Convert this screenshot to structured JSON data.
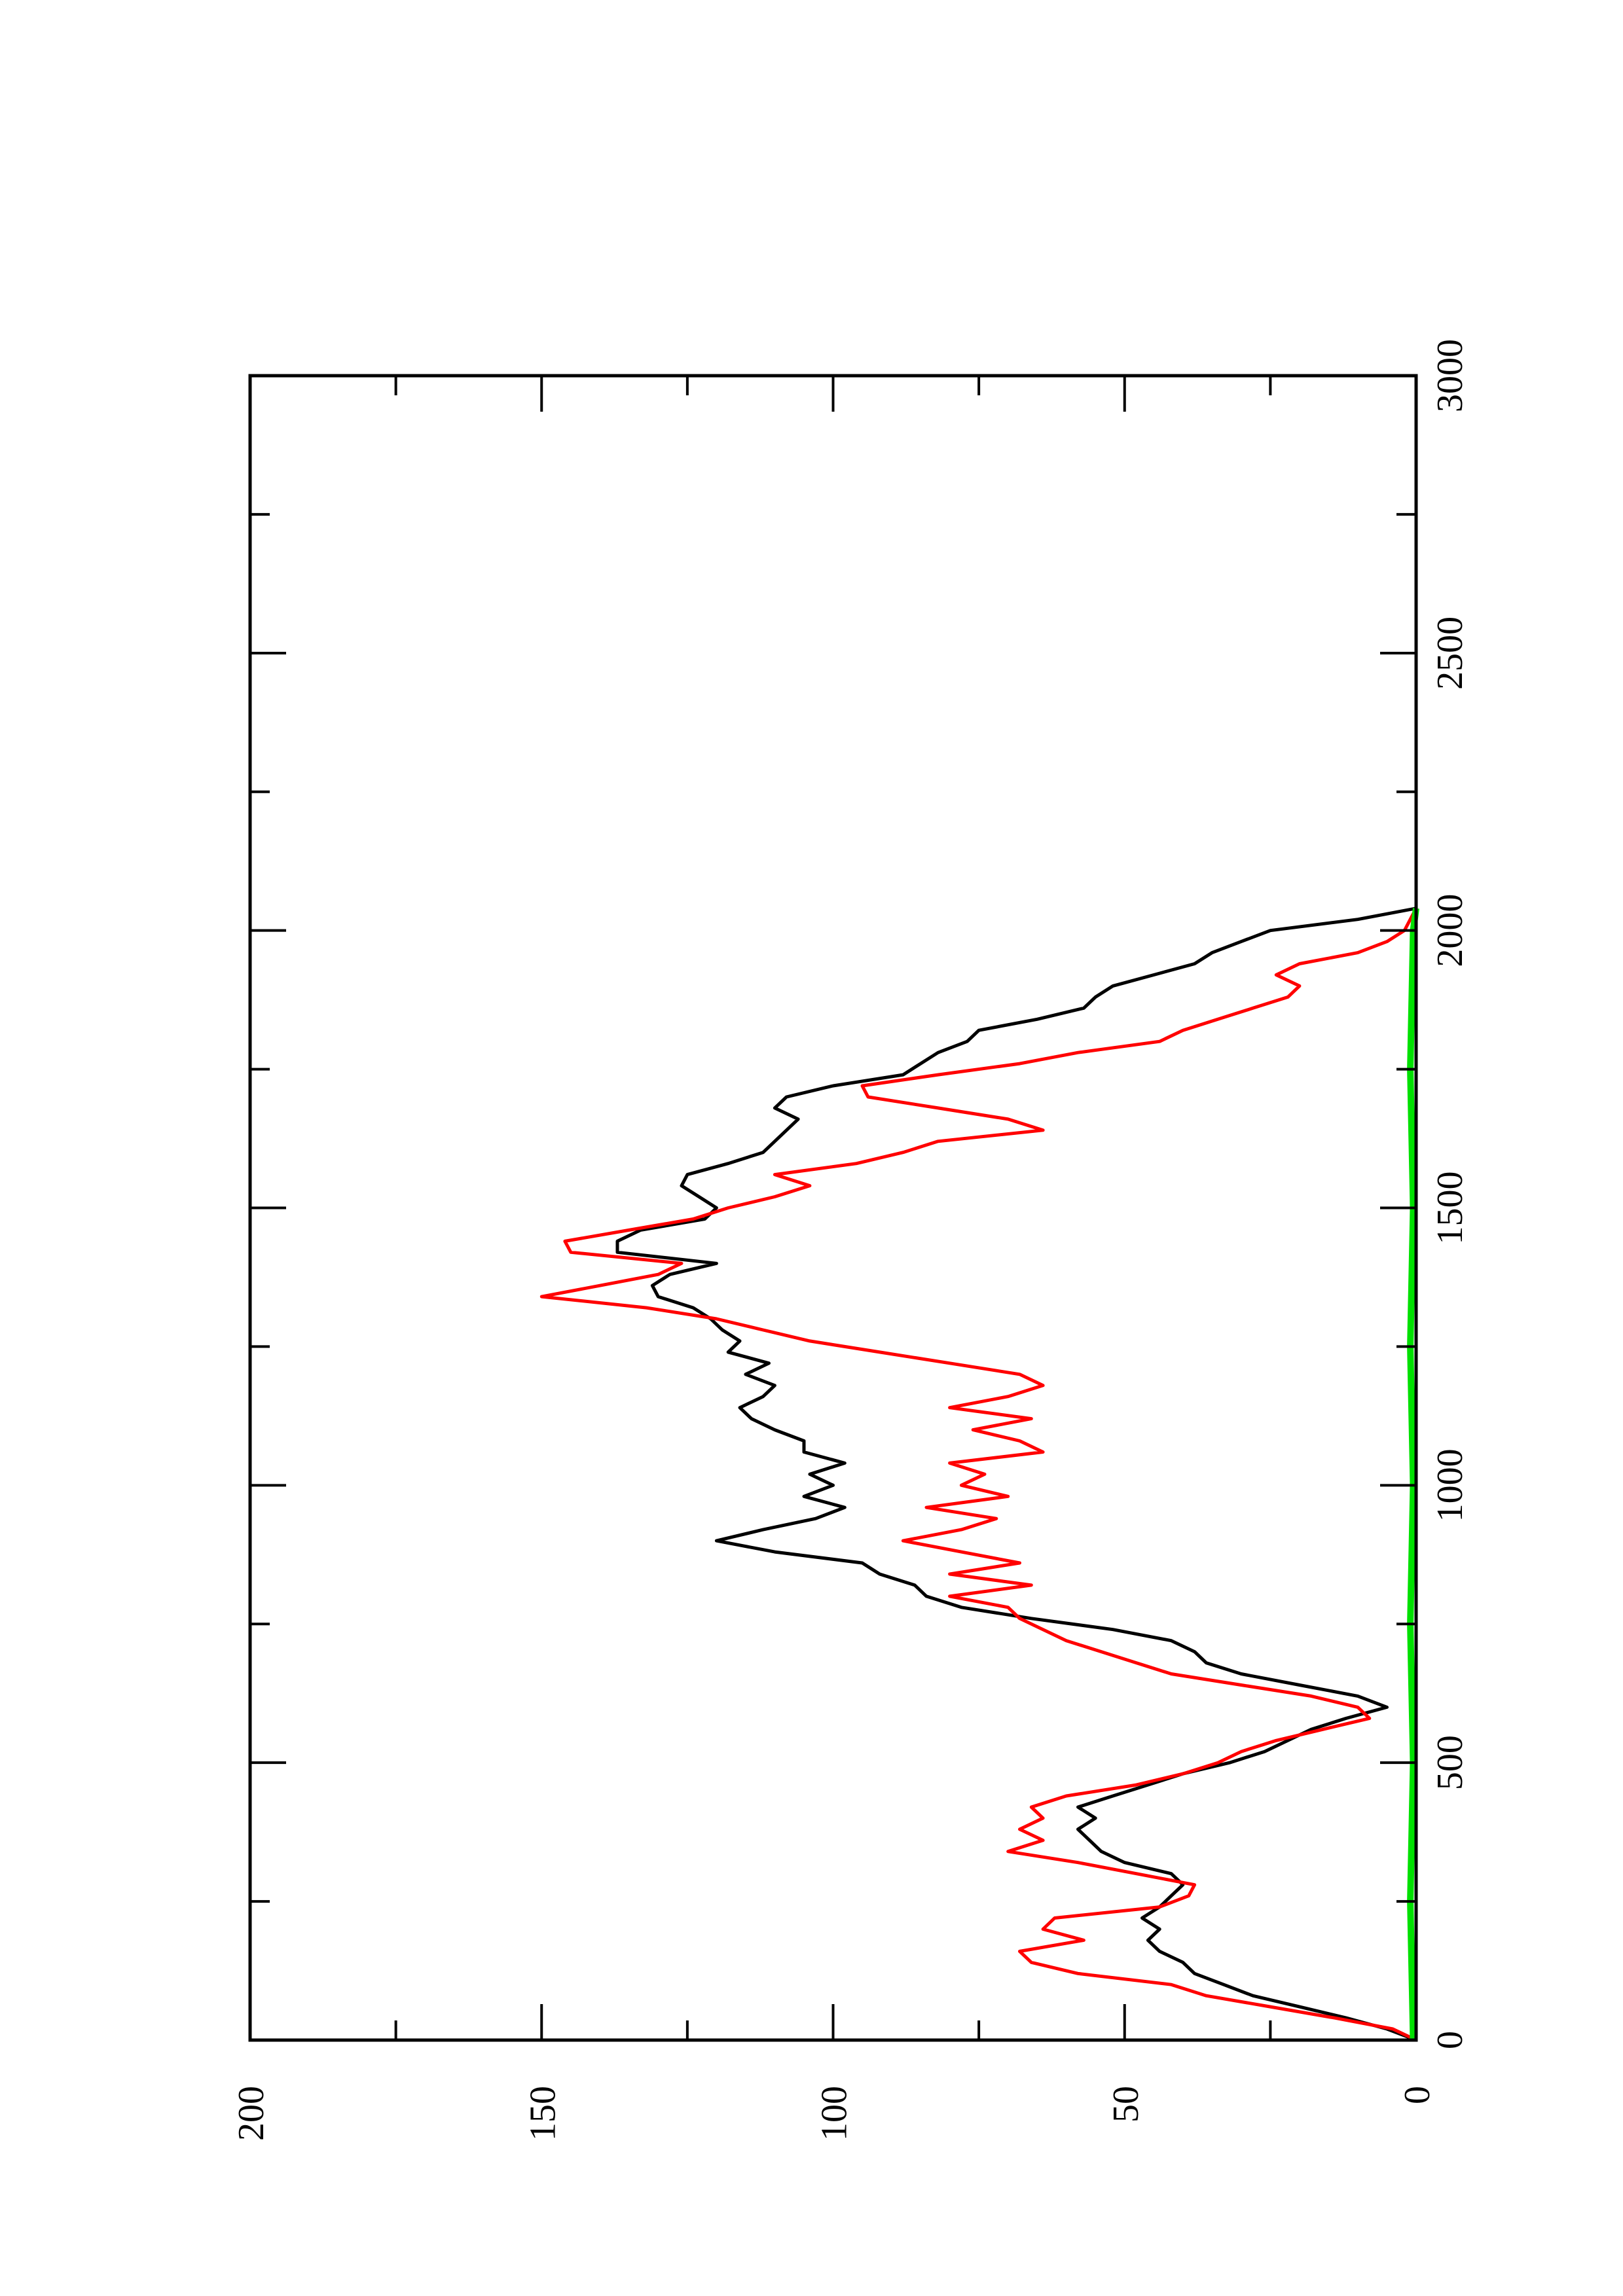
{
  "chart_data": {
    "type": "line",
    "title": "",
    "xlabel": "",
    "ylabel": "",
    "orientation": "rotated-90-counterclockwise",
    "xlim": [
      0,
      3000
    ],
    "ylim": [
      0,
      200
    ],
    "x_ticks": [
      "0",
      "500",
      "1000",
      "1500",
      "2000",
      "2500",
      "3000"
    ],
    "y_ticks": [
      "0",
      "50",
      "100",
      "150",
      "200"
    ],
    "grid": false,
    "legend": "none",
    "series": [
      {
        "color": "#000000",
        "points": [
          [
            0,
            0
          ],
          [
            20,
            5
          ],
          [
            40,
            12
          ],
          [
            60,
            20
          ],
          [
            80,
            28
          ],
          [
            100,
            33
          ],
          [
            120,
            38
          ],
          [
            140,
            40
          ],
          [
            160,
            44
          ],
          [
            180,
            46
          ],
          [
            200,
            44
          ],
          [
            220,
            47
          ],
          [
            240,
            44
          ],
          [
            260,
            42
          ],
          [
            280,
            40
          ],
          [
            300,
            42
          ],
          [
            320,
            50
          ],
          [
            340,
            54
          ],
          [
            360,
            56
          ],
          [
            380,
            58
          ],
          [
            400,
            55
          ],
          [
            420,
            58
          ],
          [
            440,
            52
          ],
          [
            460,
            46
          ],
          [
            480,
            40
          ],
          [
            500,
            32
          ],
          [
            520,
            26
          ],
          [
            540,
            22
          ],
          [
            560,
            18
          ],
          [
            580,
            12
          ],
          [
            600,
            5
          ],
          [
            620,
            10
          ],
          [
            640,
            20
          ],
          [
            660,
            30
          ],
          [
            680,
            36
          ],
          [
            700,
            38
          ],
          [
            720,
            42
          ],
          [
            740,
            52
          ],
          [
            760,
            66
          ],
          [
            780,
            78
          ],
          [
            800,
            84
          ],
          [
            820,
            86
          ],
          [
            840,
            92
          ],
          [
            860,
            95
          ],
          [
            880,
            110
          ],
          [
            900,
            120
          ],
          [
            920,
            112
          ],
          [
            940,
            103
          ],
          [
            960,
            98
          ],
          [
            980,
            105
          ],
          [
            1000,
            100
          ],
          [
            1020,
            104
          ],
          [
            1040,
            98
          ],
          [
            1060,
            105
          ],
          [
            1080,
            105
          ],
          [
            1100,
            110
          ],
          [
            1120,
            114
          ],
          [
            1140,
            116
          ],
          [
            1160,
            112
          ],
          [
            1180,
            110
          ],
          [
            1200,
            115
          ],
          [
            1220,
            111
          ],
          [
            1240,
            118
          ],
          [
            1260,
            116
          ],
          [
            1280,
            119
          ],
          [
            1300,
            121
          ],
          [
            1320,
            124
          ],
          [
            1340,
            130
          ],
          [
            1360,
            131
          ],
          [
            1380,
            128
          ],
          [
            1400,
            120
          ],
          [
            1420,
            137
          ],
          [
            1440,
            137
          ],
          [
            1460,
            133
          ],
          [
            1480,
            122
          ],
          [
            1500,
            120
          ],
          [
            1520,
            123
          ],
          [
            1540,
            126
          ],
          [
            1560,
            125
          ],
          [
            1580,
            118
          ],
          [
            1600,
            112
          ],
          [
            1620,
            110
          ],
          [
            1640,
            108
          ],
          [
            1660,
            106
          ],
          [
            1680,
            110
          ],
          [
            1700,
            108
          ],
          [
            1720,
            100
          ],
          [
            1740,
            88
          ],
          [
            1760,
            85
          ],
          [
            1780,
            82
          ],
          [
            1800,
            77
          ],
          [
            1820,
            75
          ],
          [
            1840,
            65
          ],
          [
            1860,
            57
          ],
          [
            1880,
            55
          ],
          [
            1900,
            52
          ],
          [
            1920,
            45
          ],
          [
            1940,
            38
          ],
          [
            1960,
            35
          ],
          [
            1980,
            30
          ],
          [
            2000,
            25
          ],
          [
            2020,
            10
          ],
          [
            2040,
            0
          ]
        ]
      },
      {
        "color": "#ff0000",
        "points": [
          [
            0,
            0
          ],
          [
            20,
            4
          ],
          [
            40,
            14
          ],
          [
            60,
            25
          ],
          [
            80,
            36
          ],
          [
            100,
            42
          ],
          [
            120,
            58
          ],
          [
            140,
            66
          ],
          [
            160,
            68
          ],
          [
            180,
            57
          ],
          [
            200,
            64
          ],
          [
            220,
            62
          ],
          [
            240,
            44
          ],
          [
            260,
            39
          ],
          [
            280,
            38
          ],
          [
            300,
            48
          ],
          [
            320,
            58
          ],
          [
            340,
            70
          ],
          [
            360,
            64
          ],
          [
            380,
            68
          ],
          [
            400,
            64
          ],
          [
            420,
            66
          ],
          [
            440,
            60
          ],
          [
            460,
            48
          ],
          [
            480,
            40
          ],
          [
            500,
            34
          ],
          [
            520,
            30
          ],
          [
            540,
            24
          ],
          [
            560,
            16
          ],
          [
            580,
            8
          ],
          [
            600,
            10
          ],
          [
            620,
            18
          ],
          [
            640,
            30
          ],
          [
            660,
            42
          ],
          [
            680,
            48
          ],
          [
            700,
            54
          ],
          [
            720,
            60
          ],
          [
            740,
            64
          ],
          [
            760,
            68
          ],
          [
            780,
            70
          ],
          [
            800,
            80
          ],
          [
            820,
            66
          ],
          [
            840,
            80
          ],
          [
            860,
            68
          ],
          [
            880,
            78
          ],
          [
            900,
            88
          ],
          [
            920,
            78
          ],
          [
            940,
            72
          ],
          [
            960,
            84
          ],
          [
            980,
            70
          ],
          [
            1000,
            78
          ],
          [
            1020,
            74
          ],
          [
            1040,
            80
          ],
          [
            1060,
            64
          ],
          [
            1080,
            68
          ],
          [
            1100,
            76
          ],
          [
            1120,
            66
          ],
          [
            1140,
            80
          ],
          [
            1160,
            70
          ],
          [
            1180,
            64
          ],
          [
            1200,
            68
          ],
          [
            1220,
            80
          ],
          [
            1240,
            92
          ],
          [
            1260,
            104
          ],
          [
            1280,
            112
          ],
          [
            1300,
            120
          ],
          [
            1320,
            132
          ],
          [
            1340,
            150
          ],
          [
            1360,
            140
          ],
          [
            1380,
            130
          ],
          [
            1400,
            126
          ],
          [
            1420,
            145
          ],
          [
            1440,
            146
          ],
          [
            1460,
            135
          ],
          [
            1480,
            124
          ],
          [
            1500,
            118
          ],
          [
            1520,
            110
          ],
          [
            1540,
            104
          ],
          [
            1560,
            110
          ],
          [
            1580,
            96
          ],
          [
            1600,
            88
          ],
          [
            1620,
            82
          ],
          [
            1640,
            64
          ],
          [
            1660,
            70
          ],
          [
            1680,
            82
          ],
          [
            1700,
            94
          ],
          [
            1720,
            95
          ],
          [
            1740,
            82
          ],
          [
            1760,
            68
          ],
          [
            1780,
            58
          ],
          [
            1800,
            44
          ],
          [
            1820,
            40
          ],
          [
            1840,
            34
          ],
          [
            1860,
            28
          ],
          [
            1880,
            22
          ],
          [
            1900,
            20
          ],
          [
            1920,
            24
          ],
          [
            1940,
            20
          ],
          [
            1960,
            10
          ],
          [
            1980,
            5
          ],
          [
            2000,
            2
          ],
          [
            2020,
            1
          ],
          [
            2040,
            0
          ]
        ]
      },
      {
        "color": "#00e000",
        "points": [
          [
            0,
            0.5
          ],
          [
            250,
            1
          ],
          [
            500,
            0.5
          ],
          [
            750,
            1
          ],
          [
            1000,
            0.5
          ],
          [
            1250,
            1
          ],
          [
            1500,
            0.5
          ],
          [
            1750,
            1
          ],
          [
            2000,
            0.5
          ],
          [
            2040,
            0
          ]
        ]
      }
    ]
  }
}
